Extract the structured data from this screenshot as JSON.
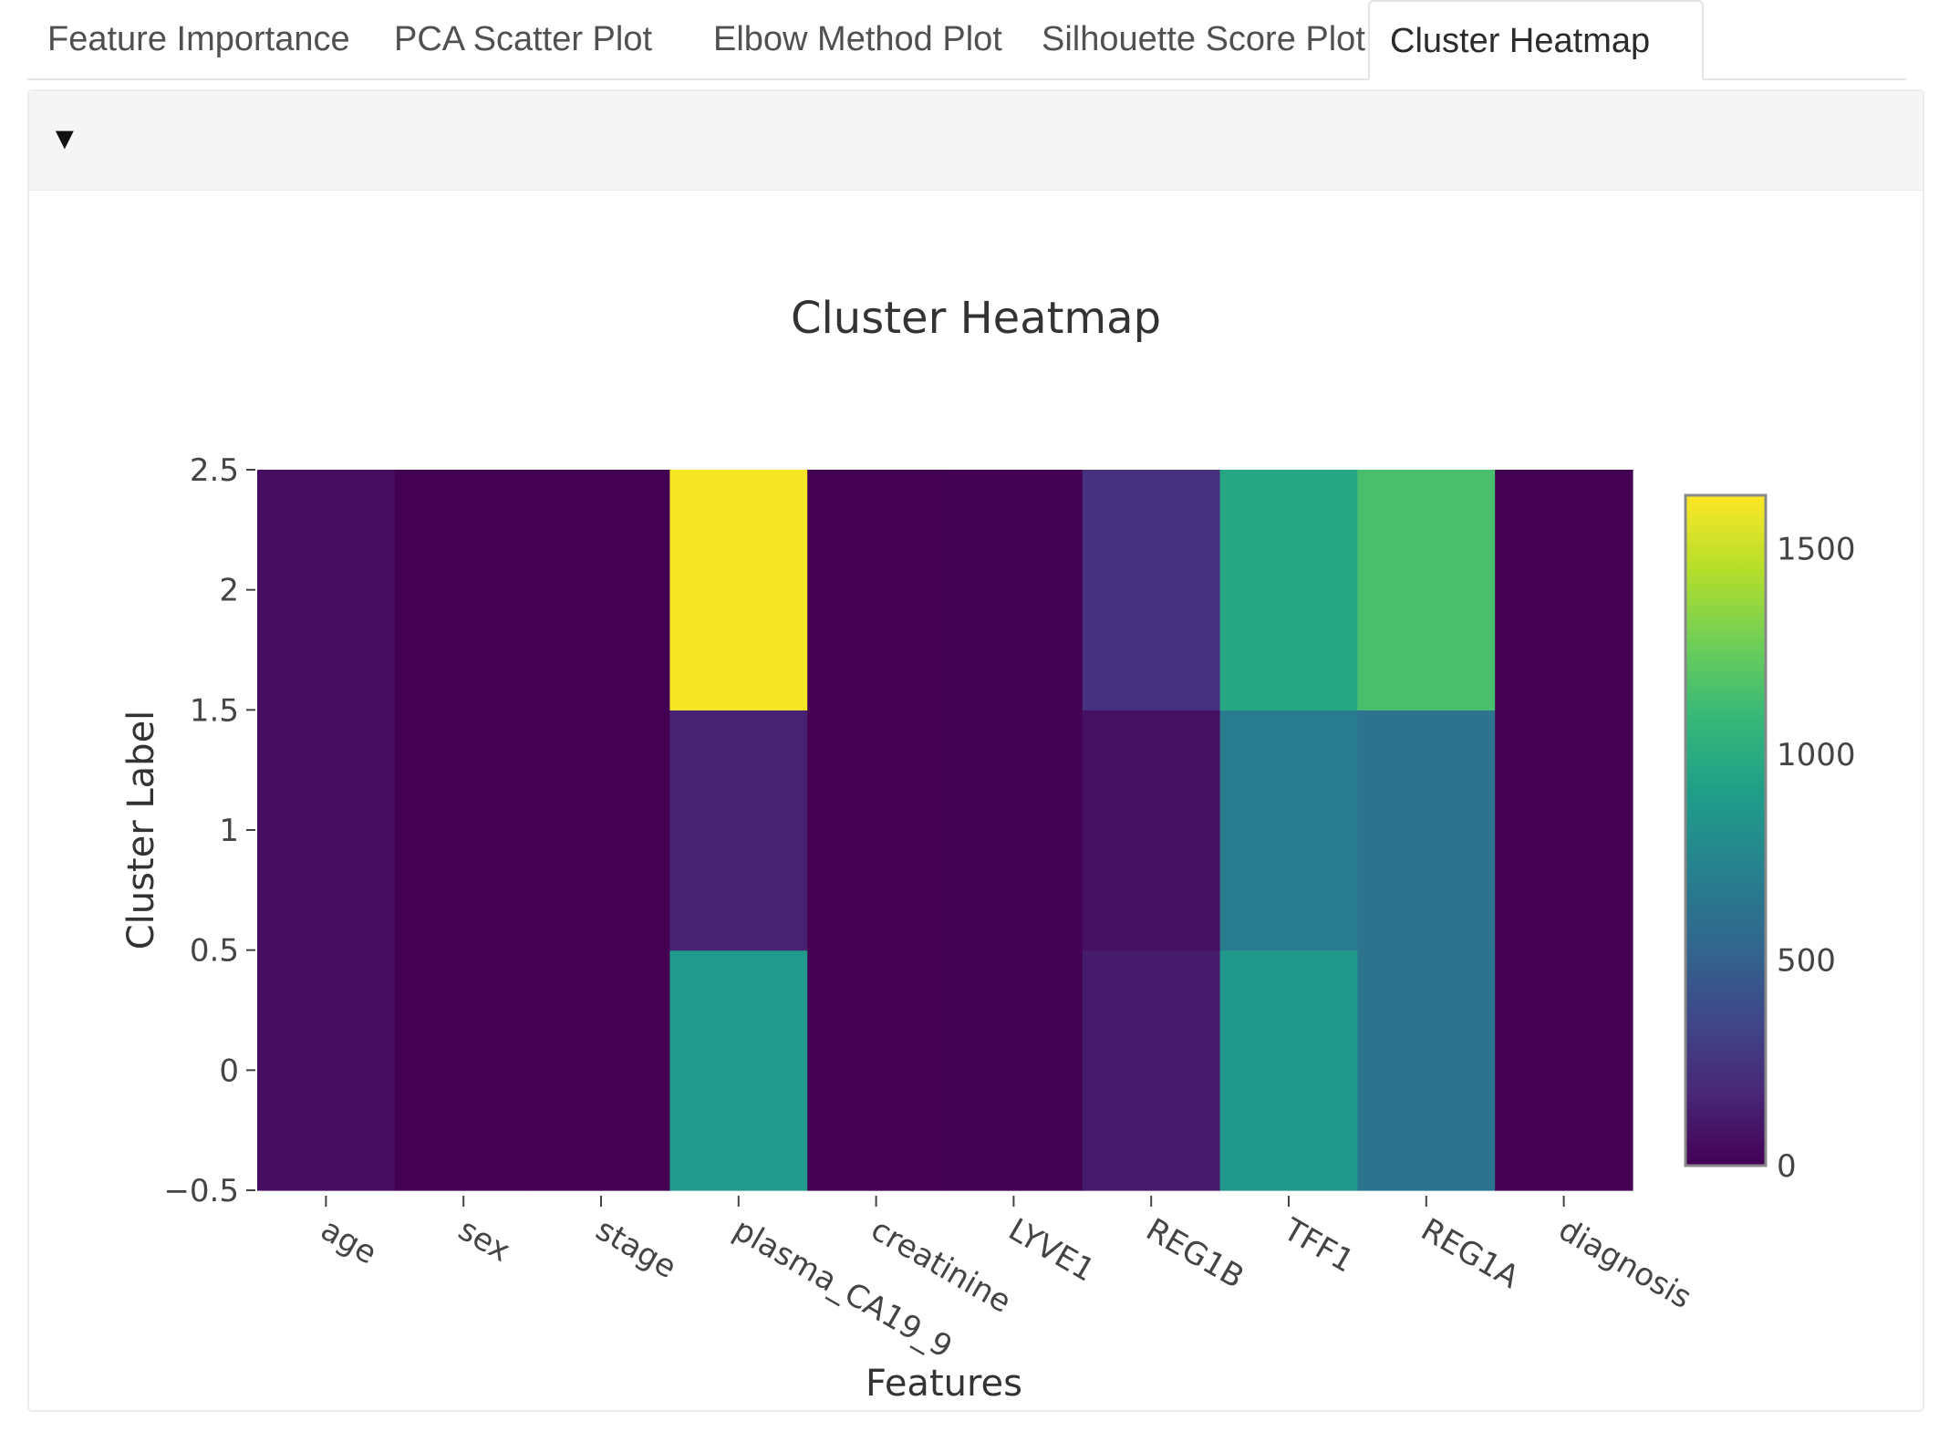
{
  "tabs": [
    {
      "label": "Feature Importance",
      "active": false
    },
    {
      "label": "PCA Scatter Plot",
      "active": false
    },
    {
      "label": "Elbow Method Plot",
      "active": false
    },
    {
      "label": "Silhouette Score Plot",
      "active": false
    },
    {
      "label": "Cluster Heatmap",
      "active": true
    }
  ],
  "panel": {
    "toggle_icon": "triangle-down-icon",
    "toggle_glyph": "▼"
  },
  "chart_data": {
    "type": "heatmap",
    "title": "Cluster Heatmap",
    "xlabel": "Features",
    "ylabel": "Cluster Label",
    "x": [
      "age",
      "sex",
      "stage",
      "plasma_CA19_9",
      "creatinine",
      "LYVE1",
      "REG1B",
      "TFF1",
      "REG1A",
      "diagnosis"
    ],
    "y": [
      0,
      1,
      2
    ],
    "z": [
      [
        60,
        0,
        2,
        880,
        1,
        5,
        120,
        870,
        620,
        2
      ],
      [
        60,
        0,
        2,
        150,
        1,
        5,
        70,
        680,
        610,
        2
      ],
      [
        60,
        0,
        2,
        1610,
        1,
        5,
        230,
        980,
        1150,
        2
      ]
    ],
    "ylim": [
      -0.5,
      2.5
    ],
    "ytick_labels": [
      "−0.5",
      "0",
      "0.5",
      "1",
      "1.5",
      "2",
      "2.5"
    ],
    "ytick_values": [
      -0.5,
      0,
      0.5,
      1,
      1.5,
      2,
      2.5
    ],
    "colorscale": "Viridis",
    "zlim": [
      0,
      1630
    ],
    "colorbar_ticks": [
      0,
      500,
      1000,
      1500
    ],
    "colorbar_tick_labels": [
      "0",
      "500",
      "1000",
      "1500"
    ],
    "colors": {
      "viridis": [
        "#440154",
        "#482878",
        "#3e4989",
        "#31688e",
        "#26828e",
        "#1f9e89",
        "#35b779",
        "#6ece58",
        "#b5de2b",
        "#fde725"
      ]
    }
  }
}
